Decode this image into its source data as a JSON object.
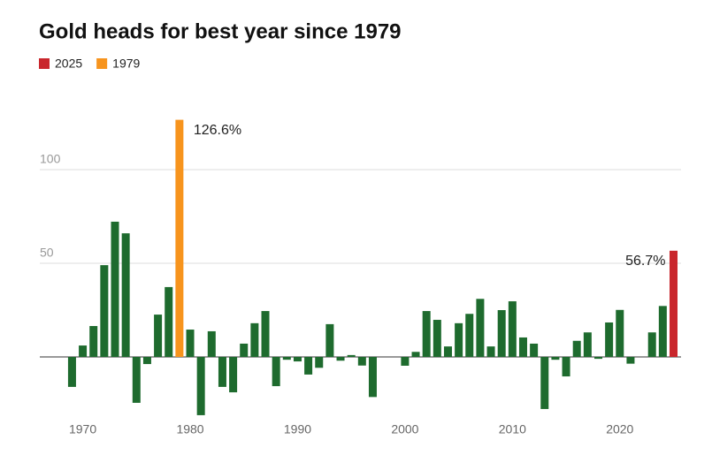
{
  "chart_data": {
    "type": "bar",
    "title": "Gold heads for best year since 1979",
    "x": [
      1969,
      1970,
      1971,
      1972,
      1973,
      1974,
      1975,
      1976,
      1977,
      1978,
      1979,
      1980,
      1981,
      1982,
      1983,
      1984,
      1985,
      1986,
      1987,
      1988,
      1989,
      1990,
      1991,
      1992,
      1993,
      1994,
      1995,
      1996,
      1997,
      1998,
      1999,
      2000,
      2001,
      2002,
      2003,
      2004,
      2005,
      2006,
      2007,
      2008,
      2009,
      2010,
      2011,
      2012,
      2013,
      2014,
      2015,
      2016,
      2017,
      2018,
      2019,
      2020,
      2021,
      2022,
      2023,
      2024,
      2025
    ],
    "series": [
      {
        "color": "#1e6b2e",
        "values": [
          -16,
          6.1,
          16.5,
          49,
          72.2,
          66,
          -24.5,
          -3.8,
          22.6,
          37.3,
          null,
          14.6,
          -31.1,
          13.7,
          -16,
          -18.9,
          7.1,
          18,
          24.5,
          -15.6,
          -1.5,
          -2.4,
          -9.4,
          -5.8,
          17.5,
          -2,
          1,
          -4.6,
          -21.4,
          0,
          0,
          -4.7,
          2.7,
          24.5,
          19.8,
          5.6,
          18,
          23,
          31,
          5.6,
          25,
          29.7,
          10.4,
          7.1,
          -27.8,
          -1.5,
          -10.4,
          8.6,
          13.1,
          -1,
          18.4,
          25.1,
          -3.6,
          0,
          13.1,
          27.2,
          null
        ]
      },
      {
        "name": "2025",
        "color": "#c9262c",
        "x": [
          2025
        ],
        "values": [
          56.7
        ],
        "value_labels": [
          "56.7%"
        ]
      },
      {
        "name": "1979",
        "color": "#f7941d",
        "x": [
          1979
        ],
        "values": [
          126.6
        ],
        "value_labels": [
          "126.6%"
        ]
      }
    ],
    "xlim": [
      1966,
      2025.7
    ],
    "xticks": [
      1970,
      1980,
      1990,
      2000,
      2010,
      2020
    ],
    "ylim": [
      -35,
      130
    ],
    "yticks": [
      50,
      100
    ],
    "grid": true
  }
}
